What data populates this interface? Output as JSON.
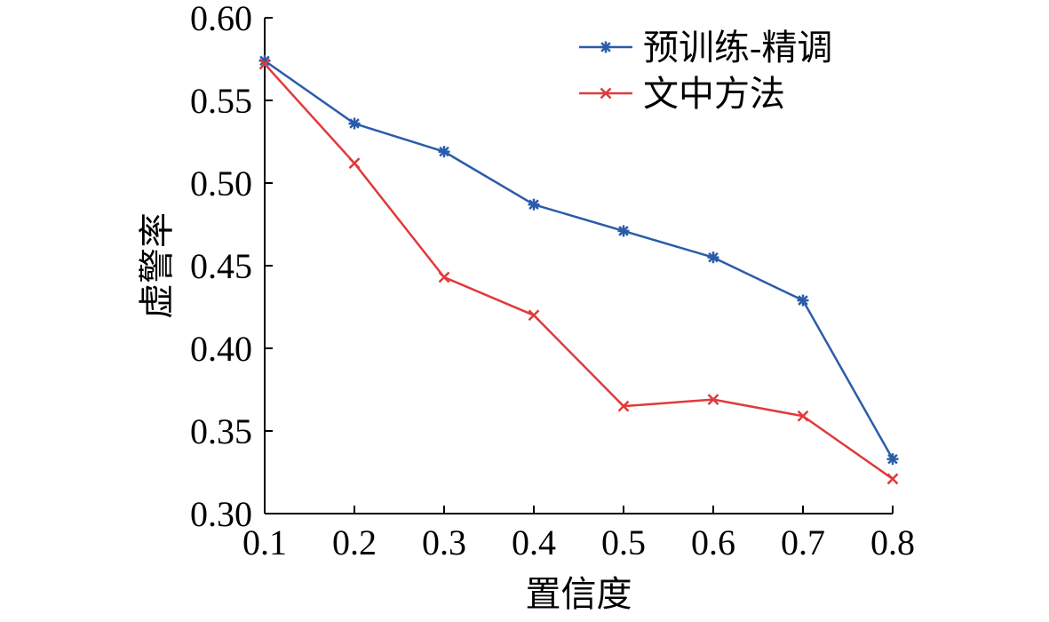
{
  "chart_data": {
    "type": "line",
    "title": "",
    "xlabel": "置信度",
    "ylabel": "虚警率",
    "x": [
      0.1,
      0.2,
      0.3,
      0.4,
      0.5,
      0.6,
      0.7,
      0.8
    ],
    "x_tick_labels": [
      "0.1",
      "0.2",
      "0.3",
      "0.4",
      "0.5",
      "0.6",
      "0.7",
      "0.8"
    ],
    "xlim": [
      0.1,
      0.8
    ],
    "ylim": [
      0.3,
      0.6
    ],
    "y_ticks": [
      0.3,
      0.35,
      0.4,
      0.45,
      0.5,
      0.55,
      0.6
    ],
    "y_tick_labels": [
      "0.30",
      "0.35",
      "0.40",
      "0.45",
      "0.50",
      "0.55",
      "0.60"
    ],
    "grid": false,
    "legend_position": "top-right",
    "series": [
      {
        "name": "预训练-精调",
        "color": "#2a5caa",
        "marker": "asterisk",
        "values": [
          0.574,
          0.536,
          0.519,
          0.487,
          0.471,
          0.455,
          0.429,
          0.333
        ]
      },
      {
        "name": "文中方法",
        "color": "#e03a3a",
        "marker": "x",
        "values": [
          0.572,
          0.512,
          0.443,
          0.42,
          0.365,
          0.369,
          0.359,
          0.321
        ]
      }
    ]
  }
}
